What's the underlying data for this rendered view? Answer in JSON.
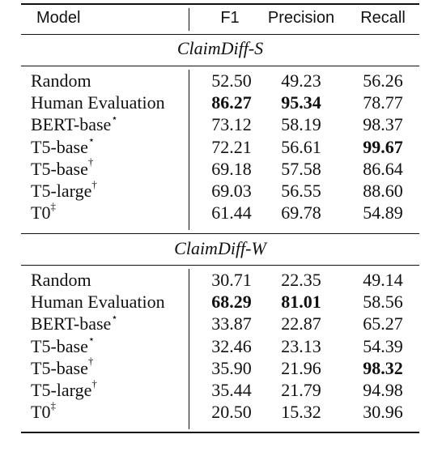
{
  "table": {
    "headers": {
      "model": "Model",
      "f1": "F1",
      "precision": "Precision",
      "recall": "Recall"
    },
    "sections": [
      {
        "title": "ClaimDiff-S",
        "rows": [
          {
            "model": "Random",
            "mark": "",
            "f1": "52.50",
            "precision": "49.23",
            "recall": "56.26",
            "bold": []
          },
          {
            "model": "Human Evaluation",
            "mark": "",
            "f1": "86.27",
            "precision": "95.34",
            "recall": "78.77",
            "bold": [
              "f1",
              "precision"
            ]
          },
          {
            "model": "BERT-base",
            "mark": "⋆",
            "f1": "73.12",
            "precision": "58.19",
            "recall": "98.37",
            "bold": []
          },
          {
            "model": "T5-base",
            "mark": "⋆",
            "f1": "72.21",
            "precision": "56.61",
            "recall": "99.67",
            "bold": [
              "recall"
            ]
          },
          {
            "model": "T5-base",
            "mark": "†",
            "f1": "69.18",
            "precision": "57.58",
            "recall": "86.64",
            "bold": []
          },
          {
            "model": "T5-large",
            "mark": "†",
            "f1": "69.03",
            "precision": "56.55",
            "recall": "88.60",
            "bold": []
          },
          {
            "model": "T0",
            "mark": "‡",
            "f1": "61.44",
            "precision": "69.78",
            "recall": "54.89",
            "bold": []
          }
        ]
      },
      {
        "title": "ClaimDiff-W",
        "rows": [
          {
            "model": "Random",
            "mark": "",
            "f1": "30.71",
            "precision": "22.35",
            "recall": "49.14",
            "bold": []
          },
          {
            "model": "Human Evaluation",
            "mark": "",
            "f1": "68.29",
            "precision": "81.01",
            "recall": "58.56",
            "bold": [
              "f1",
              "precision"
            ]
          },
          {
            "model": "BERT-base",
            "mark": "⋆",
            "f1": "33.87",
            "precision": "22.87",
            "recall": "65.27",
            "bold": []
          },
          {
            "model": "T5-base",
            "mark": "⋆",
            "f1": "32.46",
            "precision": "23.13",
            "recall": "54.39",
            "bold": []
          },
          {
            "model": "T5-base",
            "mark": "†",
            "f1": "35.90",
            "precision": "21.96",
            "recall": "98.32",
            "bold": [
              "recall"
            ]
          },
          {
            "model": "T5-large",
            "mark": "†",
            "f1": "35.44",
            "precision": "21.79",
            "recall": "94.98",
            "bold": []
          },
          {
            "model": "T0",
            "mark": "‡",
            "f1": "20.50",
            "precision": "15.32",
            "recall": "30.96",
            "bold": []
          }
        ]
      }
    ]
  }
}
